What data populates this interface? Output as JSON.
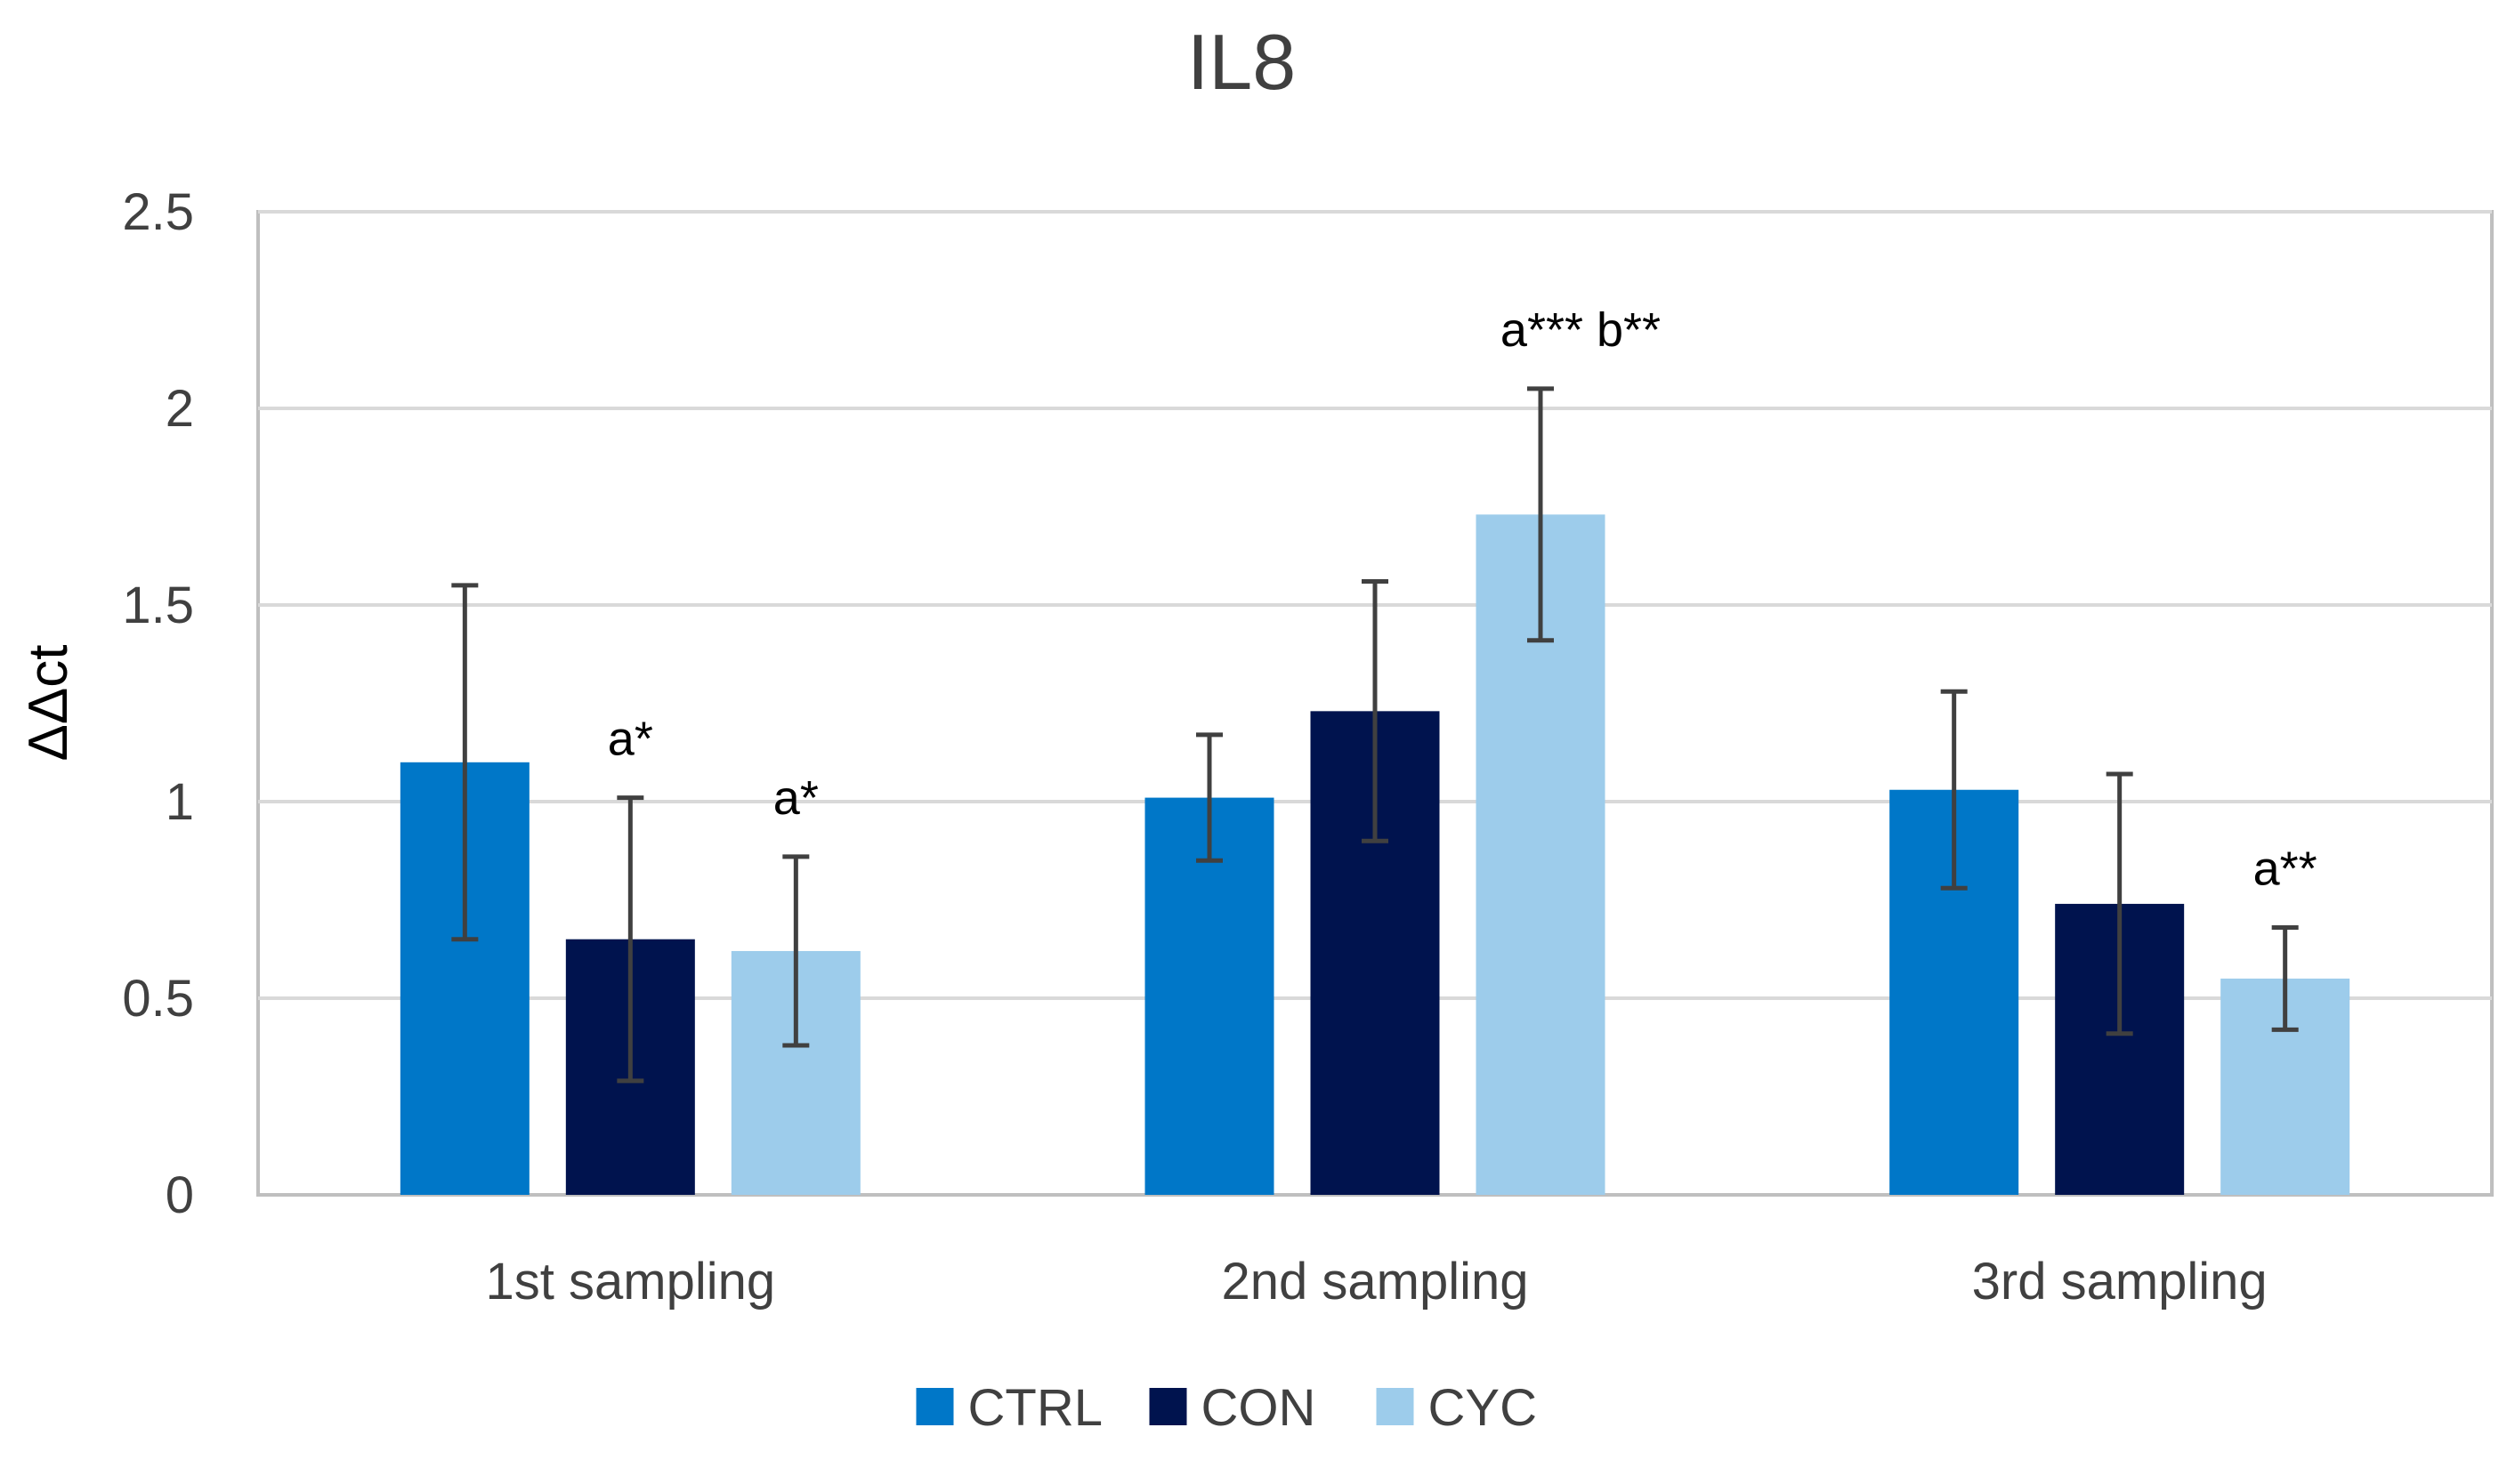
{
  "chart_data": {
    "type": "bar",
    "title": "IL8",
    "xlabel": "",
    "ylabel": "ΔΔct",
    "ylim": [
      0,
      2.5
    ],
    "yticks": [
      0,
      0.5,
      1,
      1.5,
      2,
      2.5
    ],
    "ytick_labels": [
      "0",
      "0.5",
      "1",
      "1.5",
      "2",
      "2.5"
    ],
    "grid": true,
    "legend_position": "bottom",
    "categories": [
      "1st sampling",
      "2nd sampling",
      "3rd sampling"
    ],
    "series": [
      {
        "name": "CTRL",
        "color": "#0077C8",
        "values": [
          1.1,
          1.01,
          1.03
        ],
        "errors": [
          0.45,
          0.16,
          0.25
        ]
      },
      {
        "name": "CON",
        "color": "#00134E",
        "values": [
          0.65,
          1.23,
          0.74
        ],
        "errors": [
          0.36,
          0.33,
          0.33
        ]
      },
      {
        "name": "CYC",
        "color": "#9DCCEB",
        "values": [
          0.62,
          1.73,
          0.55
        ],
        "errors": [
          0.24,
          0.32,
          0.13
        ]
      }
    ],
    "annotations": [
      {
        "category": 0,
        "series": 1,
        "text": "a*"
      },
      {
        "category": 0,
        "series": 2,
        "text": "a*"
      },
      {
        "category": 1,
        "series": 2,
        "text": "a*** b**"
      },
      {
        "category": 2,
        "series": 2,
        "text": "a**"
      }
    ],
    "colors": {
      "grid": "#D9D9D9",
      "axis": "#BFBFBF",
      "errorbar": "#404040"
    }
  }
}
